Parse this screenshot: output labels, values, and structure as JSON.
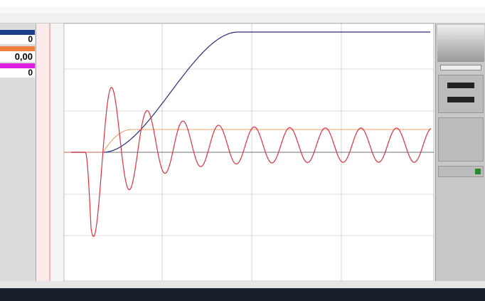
{
  "displays": [
    {
      "value": "0"
    },
    {
      "value": "0,00"
    },
    {
      "value": "0"
    }
  ]
}
